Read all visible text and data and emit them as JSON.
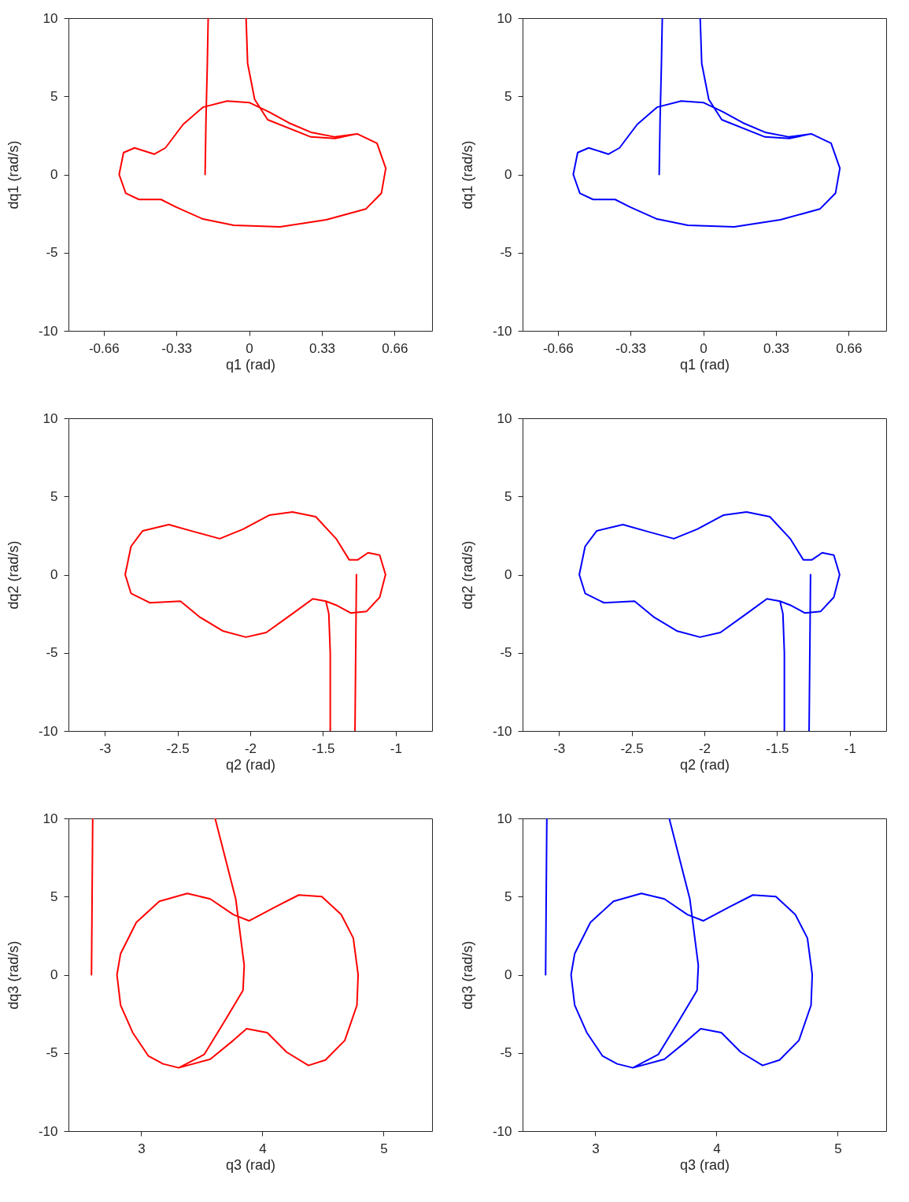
{
  "chart_data": [
    {
      "type": "line",
      "xlabel": "q1 (rad)",
      "ylabel": "dq1 (rad/s)",
      "xlim": [
        -0.82,
        0.83
      ],
      "ylim": [
        -10,
        10
      ],
      "xticks": [
        -0.66,
        -0.33,
        0,
        0.33,
        0.66
      ],
      "yticks": [
        -10,
        -5,
        0,
        5,
        10
      ],
      "grid": false,
      "marker": "none",
      "line_style": "solid",
      "series": [
        {
          "color": "#ff0000",
          "x": [
            -0.2,
            -0.196,
            -0.19,
            -0.186
          ],
          "values": [
            0,
            3.5,
            7.0,
            10
          ]
        },
        {
          "color": "#ff0000",
          "x": [
            -0.014,
            -0.007,
            0.025,
            0.084,
            0.28,
            0.39,
            0.49,
            0.58,
            0.62,
            0.6,
            0.53,
            0.35,
            0.14,
            -0.07,
            -0.21,
            -0.33,
            -0.4,
            -0.5,
            -0.56,
            -0.59,
            -0.57,
            -0.52,
            -0.43,
            -0.38,
            -0.3,
            -0.21,
            -0.1,
            0.0,
            0.09,
            0.18,
            0.28,
            0.39,
            0.49,
            0.58
          ],
          "values": [
            10,
            7.1,
            4.8,
            3.5,
            2.4,
            2.3,
            2.6,
            2.0,
            0.4,
            -1.2,
            -2.2,
            -2.9,
            -3.35,
            -3.25,
            -2.85,
            -2.1,
            -1.6,
            -1.6,
            -1.2,
            0,
            1.4,
            1.7,
            1.3,
            1.7,
            3.2,
            4.3,
            4.7,
            4.6,
            4.0,
            3.3,
            2.7,
            2.4,
            2.6,
            2.0
          ]
        }
      ]
    },
    {
      "type": "line",
      "xlabel": "q1 (rad)",
      "ylabel": "dq1 (rad/s)",
      "xlim": [
        -0.82,
        0.83
      ],
      "ylim": [
        -10,
        10
      ],
      "xticks": [
        -0.66,
        -0.33,
        0,
        0.33,
        0.66
      ],
      "yticks": [
        -10,
        -5,
        0,
        5,
        10
      ],
      "grid": false,
      "marker": "none",
      "line_style": "solid",
      "series": [
        {
          "color": "#0000ff",
          "x": [
            -0.2,
            -0.196,
            -0.19,
            -0.186
          ],
          "values": [
            0,
            3.5,
            7.0,
            10
          ]
        },
        {
          "color": "#0000ff",
          "x": [
            -0.014,
            -0.007,
            0.025,
            0.084,
            0.28,
            0.39,
            0.49,
            0.58,
            0.62,
            0.6,
            0.53,
            0.35,
            0.14,
            -0.07,
            -0.21,
            -0.33,
            -0.4,
            -0.5,
            -0.56,
            -0.59,
            -0.57,
            -0.52,
            -0.43,
            -0.38,
            -0.3,
            -0.21,
            -0.1,
            0.0,
            0.09,
            0.18,
            0.28,
            0.39,
            0.49,
            0.58
          ],
          "values": [
            10,
            7.1,
            4.8,
            3.5,
            2.4,
            2.3,
            2.6,
            2.0,
            0.4,
            -1.2,
            -2.2,
            -2.9,
            -3.35,
            -3.25,
            -2.85,
            -2.1,
            -1.6,
            -1.6,
            -1.2,
            0,
            1.4,
            1.7,
            1.3,
            1.7,
            3.2,
            4.3,
            4.7,
            4.6,
            4.0,
            3.3,
            2.7,
            2.4,
            2.6,
            2.0
          ]
        }
      ]
    },
    {
      "type": "line",
      "xlabel": "q2 (rad)",
      "ylabel": "dq2 (rad/s)",
      "xlim": [
        -3.25,
        -0.75
      ],
      "ylim": [
        -10,
        10
      ],
      "xticks": [
        -3,
        -2.5,
        -2,
        -1.5,
        -1
      ],
      "yticks": [
        -10,
        -5,
        0,
        5,
        10
      ],
      "grid": false,
      "marker": "none",
      "line_style": "solid",
      "series": [
        {
          "color": "#ff0000",
          "x": [
            -1.27,
            -1.275,
            -1.28
          ],
          "values": [
            0,
            -5,
            -10
          ]
        },
        {
          "color": "#ff0000",
          "x": [
            -1.45,
            -1.45,
            -1.46,
            -1.48,
            -1.57,
            -1.71,
            -1.89,
            -2.03,
            -2.19,
            -2.35,
            -2.48,
            -2.69,
            -2.82,
            -2.86,
            -2.82,
            -2.74,
            -2.56,
            -2.37,
            -2.21,
            -2.05,
            -1.87,
            -1.71,
            -1.55,
            -1.41,
            -1.32,
            -1.26,
            -1.19,
            -1.11,
            -1.07,
            -1.11,
            -1.2,
            -1.31,
            -1.41,
            -1.48
          ],
          "values": [
            -10,
            -5,
            -2.5,
            -1.7,
            -1.55,
            -2.5,
            -3.7,
            -4.0,
            -3.6,
            -2.7,
            -1.7,
            -1.8,
            -1.2,
            0,
            1.8,
            2.8,
            3.2,
            2.7,
            2.3,
            2.9,
            3.8,
            4.0,
            3.7,
            2.3,
            0.95,
            0.95,
            1.4,
            1.25,
            0,
            -1.45,
            -2.35,
            -2.45,
            -1.95,
            -1.7
          ]
        }
      ]
    },
    {
      "type": "line",
      "xlabel": "q2 (rad)",
      "ylabel": "dq2 (rad/s)",
      "xlim": [
        -3.25,
        -0.75
      ],
      "ylim": [
        -10,
        10
      ],
      "xticks": [
        -3,
        -2.5,
        -2,
        -1.5,
        -1
      ],
      "yticks": [
        -10,
        -5,
        0,
        5,
        10
      ],
      "grid": false,
      "marker": "none",
      "line_style": "solid",
      "series": [
        {
          "color": "#0000ff",
          "x": [
            -1.27,
            -1.275,
            -1.28
          ],
          "values": [
            0,
            -5,
            -10
          ]
        },
        {
          "color": "#0000ff",
          "x": [
            -1.45,
            -1.45,
            -1.46,
            -1.48,
            -1.57,
            -1.71,
            -1.89,
            -2.03,
            -2.19,
            -2.35,
            -2.48,
            -2.69,
            -2.82,
            -2.86,
            -2.82,
            -2.74,
            -2.56,
            -2.37,
            -2.21,
            -2.05,
            -1.87,
            -1.71,
            -1.55,
            -1.41,
            -1.32,
            -1.26,
            -1.19,
            -1.11,
            -1.07,
            -1.11,
            -1.2,
            -1.31,
            -1.41,
            -1.48
          ],
          "values": [
            -10,
            -5,
            -2.5,
            -1.7,
            -1.55,
            -2.5,
            -3.7,
            -4.0,
            -3.6,
            -2.7,
            -1.7,
            -1.8,
            -1.2,
            0,
            1.8,
            2.8,
            3.2,
            2.7,
            2.3,
            2.9,
            3.8,
            4.0,
            3.7,
            2.3,
            0.95,
            0.95,
            1.4,
            1.25,
            0,
            -1.45,
            -2.35,
            -2.45,
            -1.95,
            -1.7
          ]
        }
      ]
    },
    {
      "type": "line",
      "xlabel": "q3 (rad)",
      "ylabel": "dq3 (rad/s)",
      "xlim": [
        2.4,
        5.4
      ],
      "ylim": [
        -10,
        10
      ],
      "xticks": [
        3,
        4,
        5
      ],
      "yticks": [
        -10,
        -5,
        0,
        5,
        10
      ],
      "grid": false,
      "marker": "none",
      "line_style": "solid",
      "series": [
        {
          "color": "#ff0000",
          "x": [
            2.59,
            2.595,
            2.6
          ],
          "values": [
            0,
            5,
            10
          ]
        },
        {
          "color": "#ff0000",
          "x": [
            3.61,
            3.78,
            3.85,
            3.84,
            3.69,
            3.52,
            3.31,
            3.57,
            3.76,
            3.87,
            4.04,
            4.2,
            4.38,
            4.52,
            4.68,
            4.78,
            4.79,
            4.75,
            4.65,
            4.49,
            4.3,
            4.11,
            3.89,
            3.76,
            3.57,
            3.38,
            3.15,
            2.96,
            2.83,
            2.8,
            2.83,
            2.93,
            3.06,
            3.18,
            3.31
          ],
          "values": [
            10,
            4.85,
            0.6,
            -1.0,
            -2.95,
            -5.1,
            -5.95,
            -5.4,
            -4.2,
            -3.45,
            -3.7,
            -4.95,
            -5.8,
            -5.45,
            -4.2,
            -1.95,
            0,
            2.35,
            3.85,
            5.0,
            5.1,
            4.35,
            3.45,
            3.85,
            4.85,
            5.2,
            4.7,
            3.35,
            1.35,
            0,
            -1.95,
            -3.7,
            -5.2,
            -5.7,
            -5.95
          ]
        }
      ]
    },
    {
      "type": "line",
      "xlabel": "q3 (rad)",
      "ylabel": "dq3 (rad/s)",
      "xlim": [
        2.4,
        5.4
      ],
      "ylim": [
        -10,
        10
      ],
      "xticks": [
        3,
        4,
        5
      ],
      "yticks": [
        -10,
        -5,
        0,
        5,
        10
      ],
      "grid": false,
      "marker": "none",
      "line_style": "solid",
      "series": [
        {
          "color": "#0000ff",
          "x": [
            2.59,
            2.595,
            2.6
          ],
          "values": [
            0,
            5,
            10
          ]
        },
        {
          "color": "#0000ff",
          "x": [
            3.61,
            3.78,
            3.85,
            3.84,
            3.69,
            3.52,
            3.31,
            3.57,
            3.76,
            3.87,
            4.04,
            4.2,
            4.38,
            4.52,
            4.68,
            4.78,
            4.79,
            4.75,
            4.65,
            4.49,
            4.3,
            4.11,
            3.89,
            3.76,
            3.57,
            3.38,
            3.15,
            2.96,
            2.83,
            2.8,
            2.83,
            2.93,
            3.06,
            3.18,
            3.31
          ],
          "values": [
            10,
            4.85,
            0.6,
            -1.0,
            -2.95,
            -5.1,
            -5.95,
            -5.4,
            -4.2,
            -3.45,
            -3.7,
            -4.95,
            -5.8,
            -5.45,
            -4.2,
            -1.95,
            0,
            2.35,
            3.85,
            5.0,
            5.1,
            4.35,
            3.45,
            3.85,
            4.85,
            5.2,
            4.7,
            3.35,
            1.35,
            0,
            -1.95,
            -3.7,
            -5.2,
            -5.7,
            -5.95
          ]
        }
      ]
    }
  ]
}
